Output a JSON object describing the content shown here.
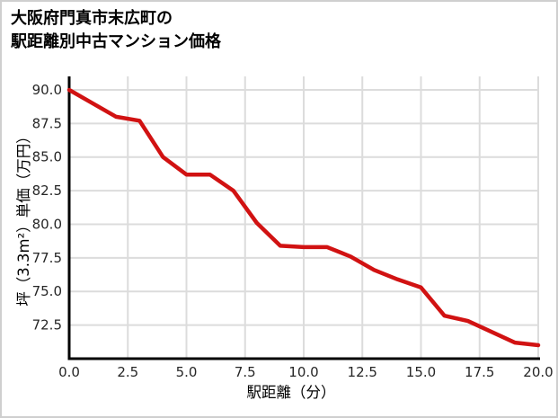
{
  "title": {
    "line1": "大阪府門真市末広町の",
    "line2": "駅距離別中古マンション価格"
  },
  "chart_data": {
    "type": "line",
    "title": "大阪府門真市末広町の駅距離別中古マンション価格",
    "xlabel": "駅距離（分）",
    "ylabel": "坪（3.3m²）単価（万円）",
    "x": [
      0,
      1,
      2,
      3,
      4,
      5,
      6,
      7,
      8,
      9,
      10,
      11,
      12,
      13,
      14,
      15,
      16,
      17,
      18,
      19,
      20
    ],
    "y": [
      90.0,
      89.0,
      88.0,
      87.7,
      85.0,
      83.7,
      83.7,
      82.5,
      80.1,
      78.4,
      78.3,
      78.3,
      77.6,
      76.6,
      75.9,
      75.3,
      73.2,
      72.8,
      72.0,
      71.2,
      71.0
    ],
    "xtick_labels": [
      "0.0",
      "2.5",
      "5.0",
      "7.5",
      "10.0",
      "12.5",
      "15.0",
      "17.5",
      "20.0"
    ],
    "ytick_labels": [
      "90.0",
      "87.5",
      "85.0",
      "82.5",
      "80.0",
      "77.5",
      "75.0",
      "72.5"
    ],
    "xlim": [
      0,
      20
    ],
    "ylim": [
      70,
      91
    ],
    "grid": true,
    "legend": false,
    "line_color": "#d11212",
    "grid_color": "#dcdcdc",
    "axis_color": "#000000",
    "text_color": "#262626"
  }
}
